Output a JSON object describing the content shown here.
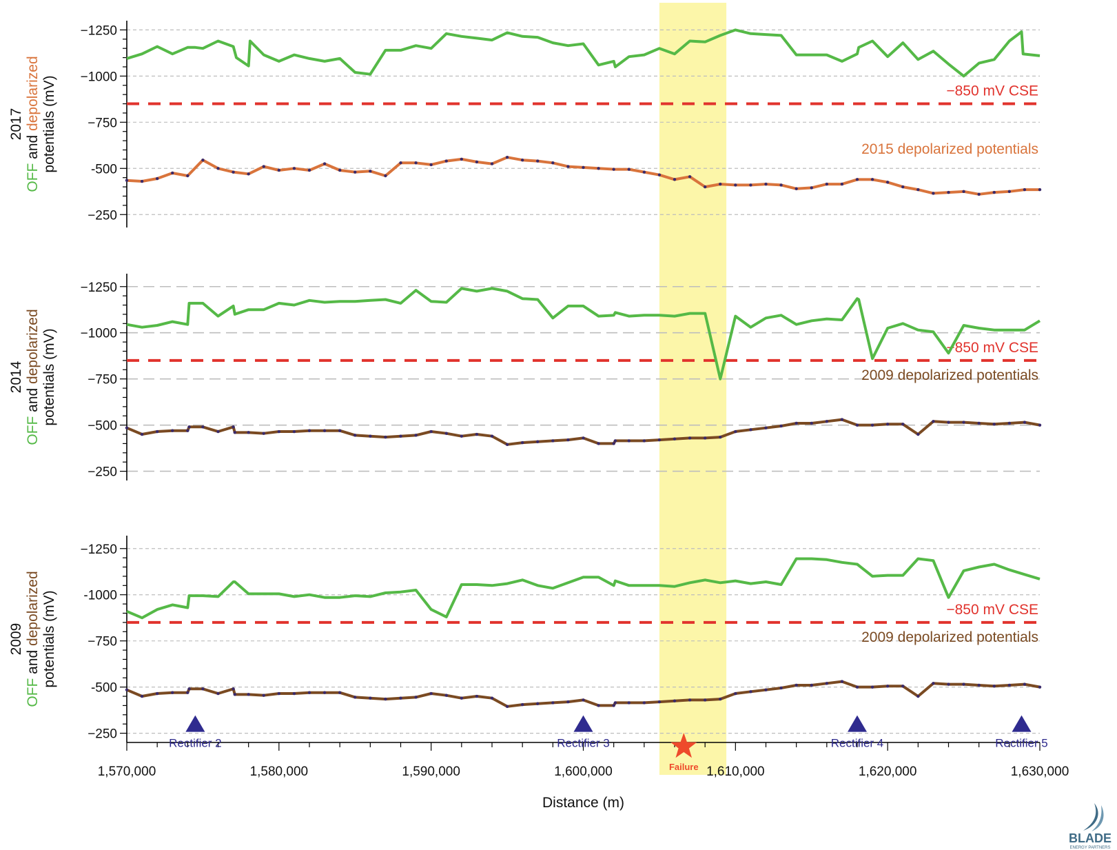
{
  "colors": {
    "off": "#55b947",
    "depol_2015": "#d9743c",
    "depol_2009": "#7a4a22",
    "criterion": "#e1332d",
    "highlight": "#fbf59a",
    "marker": "#2f2b8f",
    "failure": "#ee4a2b",
    "grid": "#bdbdbd",
    "logo": "#3f6b86"
  },
  "chart_data": [
    {
      "type": "line",
      "ylabel_line1": "2017",
      "ylabel_off": "OFF",
      "ylabel_and": " and ",
      "ylabel_depol": "depolarized",
      "ylabel_line3": "potentials (mV)",
      "ylim": [
        -180,
        -1300
      ],
      "yticks": [
        -250,
        -500,
        -750,
        -1000,
        -1250
      ],
      "ytick_labels": [
        "−250",
        "-500",
        "−750",
        "−1000",
        "−1250"
      ],
      "criterion_value": -850,
      "criterion_label": "−850 mV CSE",
      "series_label": "2015 depolarized potentials",
      "series": [
        {
          "role": "off",
          "x": [
            1570000,
            1571000,
            1572000,
            1573000,
            1574000,
            1574500,
            1575000,
            1576000,
            1577000,
            1577200,
            1578000,
            1578100,
            1579000,
            1580000,
            1581000,
            1582000,
            1583000,
            1584000,
            1585000,
            1586000,
            1587000,
            1588000,
            1589000,
            1590000,
            1591000,
            1592000,
            1593000,
            1594000,
            1595000,
            1596000,
            1597000,
            1598000,
            1599000,
            1600000,
            1601000,
            1602000,
            1602100,
            1603000,
            1604000,
            1605000,
            1606000,
            1607000,
            1608000,
            1609000,
            1610000,
            1611000,
            1612000,
            1613000,
            1614000,
            1615000,
            1616000,
            1617000,
            1618000,
            1618100,
            1619000,
            1620000,
            1621000,
            1622000,
            1623000,
            1624000,
            1625000,
            1626000,
            1627000,
            1628000,
            1628800,
            1628900,
            1630000
          ],
          "y": [
            -1095,
            -1120,
            -1160,
            -1120,
            -1155,
            -1155,
            -1150,
            -1190,
            -1160,
            -1100,
            -1055,
            -1190,
            -1115,
            -1080,
            -1115,
            -1095,
            -1080,
            -1095,
            -1020,
            -1010,
            -1140,
            -1140,
            -1165,
            -1150,
            -1230,
            -1215,
            -1205,
            -1195,
            -1235,
            -1215,
            -1210,
            -1180,
            -1165,
            -1175,
            -1060,
            -1080,
            -1050,
            -1105,
            -1115,
            -1150,
            -1120,
            -1190,
            -1185,
            -1220,
            -1250,
            -1230,
            -1225,
            -1220,
            -1115,
            -1115,
            -1115,
            -1080,
            -1120,
            -1155,
            -1190,
            -1105,
            -1180,
            -1090,
            -1135,
            -1065,
            -1000,
            -1070,
            -1090,
            -1190,
            -1240,
            -1120,
            -1110
          ]
        },
        {
          "role": "depol",
          "x": [
            1570000,
            1571000,
            1572000,
            1573000,
            1574000,
            1575000,
            1576000,
            1577000,
            1578000,
            1579000,
            1580000,
            1581000,
            1582000,
            1583000,
            1584000,
            1585000,
            1586000,
            1587000,
            1588000,
            1589000,
            1590000,
            1591000,
            1592000,
            1593000,
            1594000,
            1595000,
            1596000,
            1597000,
            1598000,
            1599000,
            1600000,
            1601000,
            1602000,
            1603000,
            1604000,
            1605000,
            1606000,
            1607000,
            1608000,
            1609000,
            1610000,
            1611000,
            1612000,
            1613000,
            1614000,
            1615000,
            1616000,
            1617000,
            1618000,
            1619000,
            1620000,
            1621000,
            1622000,
            1623000,
            1624000,
            1625000,
            1626000,
            1627000,
            1628000,
            1629000,
            1630000
          ],
          "y": [
            -435,
            -430,
            -445,
            -475,
            -460,
            -545,
            -500,
            -480,
            -470,
            -510,
            -490,
            -500,
            -490,
            -525,
            -490,
            -480,
            -485,
            -460,
            -530,
            -530,
            -520,
            -540,
            -550,
            -535,
            -525,
            -560,
            -545,
            -540,
            -530,
            -510,
            -505,
            -500,
            -495,
            -495,
            -480,
            -465,
            -440,
            -455,
            -400,
            -415,
            -410,
            -410,
            -415,
            -410,
            -390,
            -395,
            -415,
            -415,
            -440,
            -440,
            -425,
            -400,
            -385,
            -365,
            -370,
            -375,
            -360,
            -370,
            -375,
            -385,
            -385
          ]
        }
      ]
    },
    {
      "type": "line",
      "ylabel_line1": "2014",
      "ylabel_off": "OFF",
      "ylabel_and": " and ",
      "ylabel_depol": "depolarized",
      "ylabel_line3": "potentials (mV)",
      "ylim": [
        -200,
        -1320
      ],
      "yticks": [
        -250,
        -500,
        -750,
        -1000,
        -1250
      ],
      "ytick_labels": [
        "−250",
        "−500",
        "−750",
        "−1000",
        "−1250"
      ],
      "criterion_value": -850,
      "criterion_label": "−850 mV CSE",
      "series_label": "2009 depolarized potentials",
      "series": [
        {
          "role": "off",
          "x": [
            1570000,
            1571000,
            1572000,
            1573000,
            1574000,
            1574100,
            1575000,
            1576000,
            1577000,
            1577100,
            1578000,
            1579000,
            1580000,
            1581000,
            1582000,
            1583000,
            1584000,
            1585000,
            1586000,
            1587000,
            1588000,
            1589000,
            1590000,
            1591000,
            1592000,
            1593000,
            1594000,
            1595000,
            1596000,
            1597000,
            1598000,
            1599000,
            1600000,
            1601000,
            1602000,
            1602100,
            1603000,
            1604000,
            1605000,
            1606000,
            1607000,
            1608000,
            1609000,
            1610000,
            1611000,
            1612000,
            1613000,
            1614000,
            1615000,
            1616000,
            1617000,
            1618000,
            1618100,
            1619000,
            1620000,
            1621000,
            1622000,
            1623000,
            1624000,
            1625000,
            1626000,
            1627000,
            1628000,
            1629000,
            1630000
          ],
          "y": [
            -1045,
            -1030,
            -1040,
            -1060,
            -1045,
            -1160,
            -1160,
            -1090,
            -1145,
            -1100,
            -1125,
            -1125,
            -1160,
            -1150,
            -1175,
            -1165,
            -1170,
            -1170,
            -1175,
            -1180,
            -1160,
            -1230,
            -1170,
            -1165,
            -1240,
            -1225,
            -1240,
            -1225,
            -1185,
            -1180,
            -1080,
            -1145,
            -1145,
            -1090,
            -1095,
            -1110,
            -1090,
            -1095,
            -1095,
            -1090,
            -1105,
            -1105,
            -750,
            -1090,
            -1030,
            -1080,
            -1095,
            -1045,
            -1065,
            -1075,
            -1070,
            -1185,
            -1180,
            -860,
            -1025,
            -1050,
            -1015,
            -1005,
            -890,
            -1040,
            -1025,
            -1015,
            -1015,
            -1015,
            -1065
          ]
        },
        {
          "role": "depol",
          "x": [
            1570000,
            1571000,
            1572000,
            1573000,
            1574000,
            1574100,
            1575000,
            1576000,
            1577000,
            1577100,
            1578000,
            1579000,
            1580000,
            1581000,
            1582000,
            1583000,
            1584000,
            1585000,
            1586000,
            1587000,
            1588000,
            1589000,
            1590000,
            1591000,
            1592000,
            1593000,
            1594000,
            1595000,
            1596000,
            1597000,
            1598000,
            1599000,
            1600000,
            1601000,
            1602000,
            1602100,
            1603000,
            1604000,
            1605000,
            1606000,
            1607000,
            1608000,
            1609000,
            1610000,
            1611000,
            1612000,
            1613000,
            1614000,
            1615000,
            1616000,
            1617000,
            1618000,
            1619000,
            1620000,
            1621000,
            1622000,
            1623000,
            1624000,
            1625000,
            1626000,
            1627000,
            1628000,
            1629000,
            1630000
          ],
          "y": [
            -485,
            -450,
            -465,
            -470,
            -470,
            -490,
            -490,
            -465,
            -490,
            -460,
            -460,
            -455,
            -465,
            -465,
            -470,
            -470,
            -470,
            -445,
            -440,
            -435,
            -440,
            -445,
            -465,
            -455,
            -440,
            -450,
            -440,
            -395,
            -405,
            -410,
            -415,
            -420,
            -430,
            -400,
            -400,
            -415,
            -415,
            -415,
            -420,
            -425,
            -430,
            -430,
            -435,
            -465,
            -475,
            -485,
            -495,
            -510,
            -510,
            -520,
            -530,
            -500,
            -500,
            -505,
            -505,
            -450,
            -520,
            -515,
            -515,
            -510,
            -505,
            -510,
            -515,
            -500
          ]
        }
      ]
    },
    {
      "type": "line",
      "ylabel_line1": "2009",
      "ylabel_off": "OFF",
      "ylabel_and": " and ",
      "ylabel_depol": "depolarized",
      "ylabel_line3": "potentials (mV)",
      "ylim": [
        -200,
        -1320
      ],
      "yticks": [
        -250,
        -500,
        -750,
        -1000,
        -1250
      ],
      "ytick_labels": [
        "−250",
        "-500",
        "−750",
        "-1000",
        "−1250"
      ],
      "criterion_value": -850,
      "criterion_label": "−850 mV CSE",
      "series_label": "2009 depolarized potentials",
      "xlim": [
        1570000,
        1630000
      ],
      "xticks": [
        1570000,
        1580000,
        1590000,
        1600000,
        1610000,
        1620000,
        1630000
      ],
      "xtick_labels": [
        "1,570,000",
        "1,580,000",
        "1,590,000",
        "1,600,000",
        "1,610,000",
        "1,620,000",
        "1,630,000"
      ],
      "xlabel": "Distance (m)",
      "series": [
        {
          "role": "off",
          "x": [
            1570000,
            1571000,
            1572000,
            1573000,
            1574000,
            1574100,
            1575000,
            1576000,
            1577000,
            1577100,
            1578000,
            1579000,
            1580000,
            1581000,
            1582000,
            1583000,
            1584000,
            1585000,
            1586000,
            1587000,
            1588000,
            1589000,
            1590000,
            1591000,
            1592000,
            1593000,
            1594000,
            1595000,
            1596000,
            1597000,
            1598000,
            1599000,
            1600000,
            1601000,
            1602000,
            1602100,
            1603000,
            1604000,
            1605000,
            1606000,
            1607000,
            1608000,
            1609000,
            1610000,
            1611000,
            1612000,
            1613000,
            1614000,
            1615000,
            1616000,
            1617000,
            1618000,
            1619000,
            1620000,
            1621000,
            1622000,
            1623000,
            1624000,
            1625000,
            1626000,
            1627000,
            1628000,
            1629000,
            1630000
          ],
          "y": [
            -910,
            -875,
            -920,
            -945,
            -930,
            -995,
            -995,
            -990,
            -1070,
            -1070,
            -1005,
            -1005,
            -1005,
            -990,
            -1000,
            -985,
            -985,
            -995,
            -990,
            -1010,
            -1015,
            -1025,
            -920,
            -880,
            -1055,
            -1055,
            -1050,
            -1060,
            -1080,
            -1050,
            -1035,
            -1065,
            -1095,
            -1095,
            -1050,
            -1075,
            -1050,
            -1050,
            -1050,
            -1045,
            -1065,
            -1080,
            -1065,
            -1075,
            -1060,
            -1070,
            -1055,
            -1195,
            -1195,
            -1190,
            -1175,
            -1165,
            -1100,
            -1105,
            -1105,
            -1195,
            -1185,
            -985,
            -1130,
            -1150,
            -1165,
            -1135,
            -1110,
            -1085
          ]
        },
        {
          "role": "depol",
          "x": [
            1570000,
            1571000,
            1572000,
            1573000,
            1574000,
            1574100,
            1575000,
            1576000,
            1577000,
            1577100,
            1578000,
            1579000,
            1580000,
            1581000,
            1582000,
            1583000,
            1584000,
            1585000,
            1586000,
            1587000,
            1588000,
            1589000,
            1590000,
            1591000,
            1592000,
            1593000,
            1594000,
            1595000,
            1596000,
            1597000,
            1598000,
            1599000,
            1600000,
            1601000,
            1602000,
            1602100,
            1603000,
            1604000,
            1605000,
            1606000,
            1607000,
            1608000,
            1609000,
            1610000,
            1611000,
            1612000,
            1613000,
            1614000,
            1615000,
            1616000,
            1617000,
            1618000,
            1619000,
            1620000,
            1621000,
            1622000,
            1623000,
            1624000,
            1625000,
            1626000,
            1627000,
            1628000,
            1629000,
            1630000
          ],
          "y": [
            -485,
            -450,
            -465,
            -470,
            -470,
            -490,
            -490,
            -465,
            -490,
            -460,
            -460,
            -455,
            -465,
            -465,
            -470,
            -470,
            -470,
            -445,
            -440,
            -435,
            -440,
            -445,
            -465,
            -455,
            -440,
            -450,
            -440,
            -395,
            -405,
            -410,
            -415,
            -420,
            -430,
            -400,
            -400,
            -415,
            -415,
            -415,
            -420,
            -425,
            -430,
            -430,
            -435,
            -465,
            -475,
            -485,
            -495,
            -510,
            -510,
            -520,
            -530,
            -500,
            -500,
            -505,
            -505,
            -450,
            -520,
            -515,
            -515,
            -510,
            -505,
            -510,
            -515,
            -500
          ]
        }
      ]
    }
  ],
  "highlight_range": [
    1605000,
    1609400
  ],
  "rectifiers": [
    {
      "x": 1574500,
      "label": "Rectifier 2"
    },
    {
      "x": 1600000,
      "label": "Rectifier 3"
    },
    {
      "x": 1618000,
      "label": "Rectifier 4"
    },
    {
      "x": 1628800,
      "label": "Rectifier 5"
    }
  ],
  "failure": {
    "x": 1606600,
    "label": "Failure"
  },
  "logo": {
    "line1": "BLADE",
    "line2": "ENERGY PARTNERS"
  }
}
